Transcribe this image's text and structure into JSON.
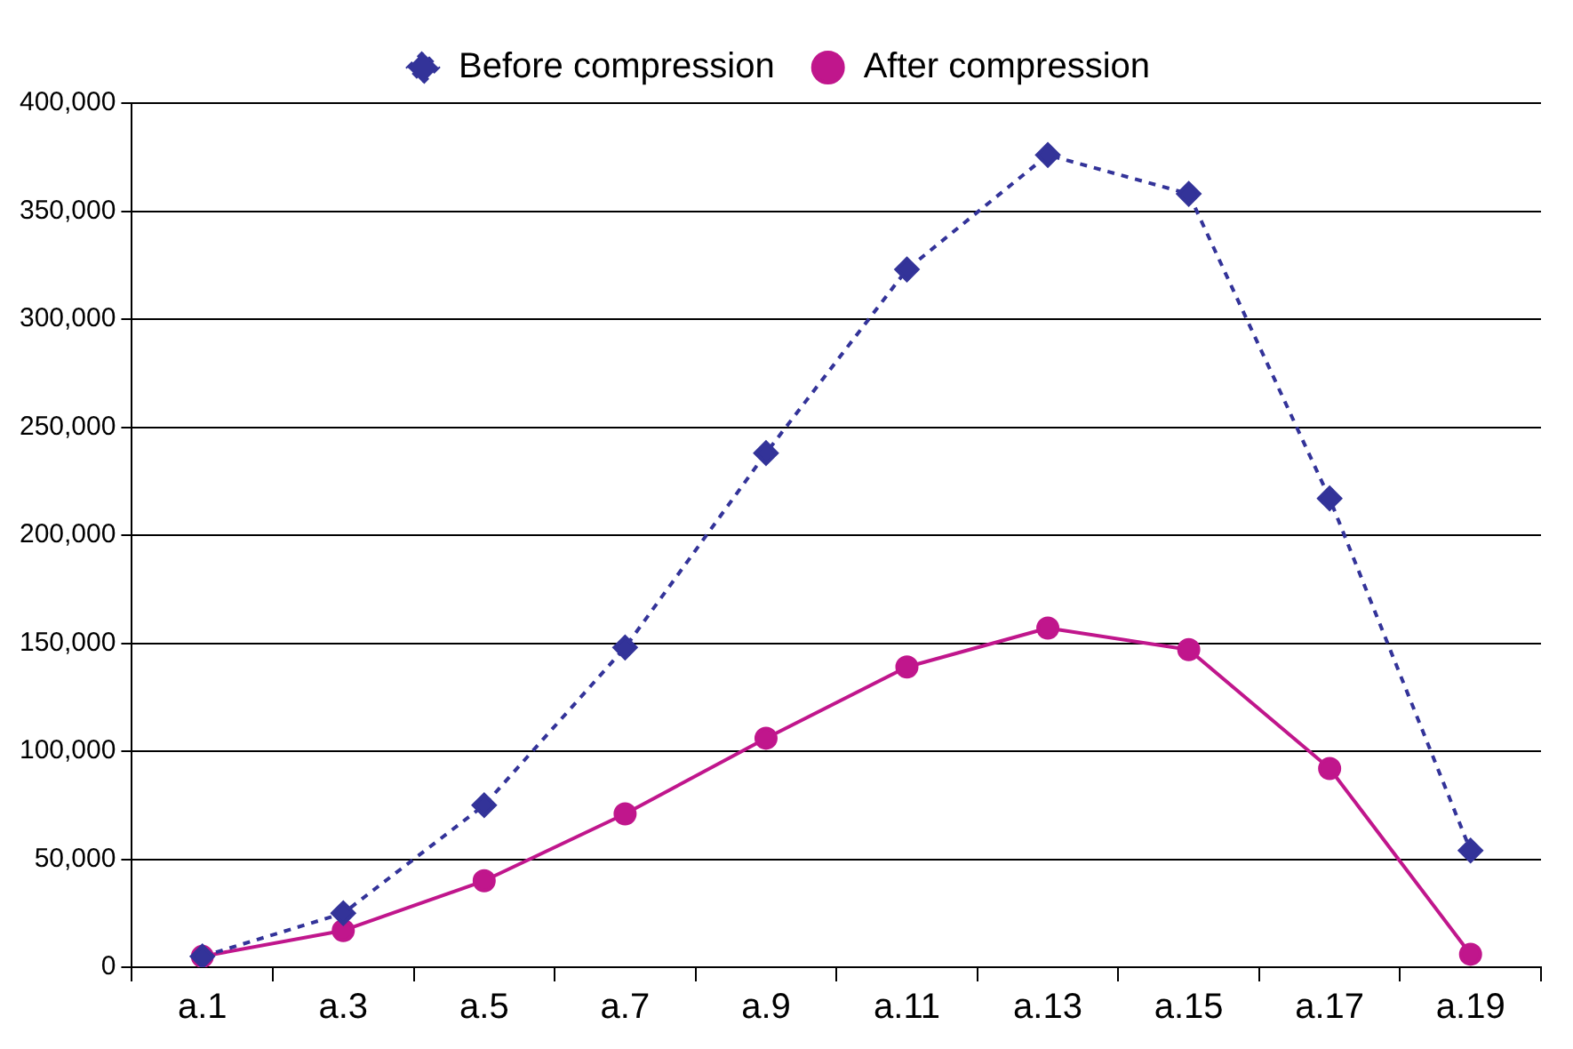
{
  "chart_data": {
    "type": "line",
    "categories": [
      "a.1",
      "a.3",
      "a.5",
      "a.7",
      "a.9",
      "a.11",
      "a.13",
      "a.15",
      "a.17",
      "a.19"
    ],
    "series": [
      {
        "name": "Before compression",
        "color": "#333399",
        "marker": "diamond",
        "line_style": "dotted",
        "values": [
          5000,
          25000,
          75000,
          148000,
          238000,
          323000,
          376000,
          358000,
          217000,
          54000
        ]
      },
      {
        "name": "After compression",
        "color": "#c0168c",
        "marker": "circle",
        "line_style": "solid",
        "values": [
          5000,
          17000,
          40000,
          71000,
          106000,
          139000,
          157000,
          147000,
          92000,
          6000
        ]
      }
    ],
    "ylim": [
      0,
      400000
    ],
    "yticks": [
      0,
      {
        "value": 50000,
        "label": "50,000"
      },
      {
        "value": 100000,
        "label": "100,000"
      },
      {
        "value": 150000,
        "label": "150,000"
      },
      {
        "value": 200000,
        "label": "200,000"
      },
      {
        "value": 250000,
        "label": "250,000"
      },
      {
        "value": 300000,
        "label": "300,000"
      },
      {
        "value": 350000,
        "label": "350,000"
      },
      {
        "value": 400000,
        "label": "400,000"
      }
    ],
    "grid": "y",
    "legend": "top"
  }
}
